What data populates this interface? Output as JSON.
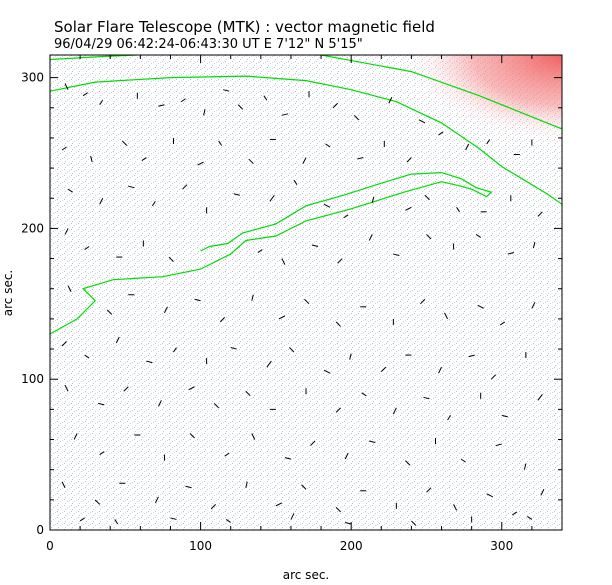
{
  "chart_data": {
    "type": "vector-magnetogram",
    "title": "Solar Flare Telescope (MTK) : vector magnetic field",
    "subtitle": "96/04/29  06:42:24-06:43:30 UT    E 7'12\"  N 5'15\"",
    "xlabel": "arc sec.",
    "ylabel": "arc sec.",
    "xlim": [
      0,
      340
    ],
    "ylim": [
      0,
      315
    ],
    "x_ticks": [
      0,
      100,
      200,
      300
    ],
    "y_ticks": [
      0,
      100,
      200,
      300
    ],
    "grid": false,
    "colors": {
      "frame": "#000000",
      "contour": "#00dd00",
      "vector": "#000000",
      "background_speckle": "#b4bede",
      "limb_region": "#f05a5a"
    },
    "limb_contour": [
      [
        0,
        291
      ],
      [
        30,
        297
      ],
      [
        80,
        300
      ],
      [
        130,
        301
      ],
      [
        170,
        298
      ],
      [
        200,
        292
      ],
      [
        230,
        284
      ],
      [
        260,
        270
      ],
      [
        285,
        253
      ],
      [
        300,
        241
      ],
      [
        315,
        232
      ],
      [
        330,
        223
      ],
      [
        340,
        216
      ]
    ],
    "upper_edge_contour": [
      [
        0,
        312
      ],
      [
        35,
        314
      ],
      [
        80,
        316
      ],
      [
        180,
        315
      ],
      [
        240,
        304
      ],
      [
        285,
        288
      ],
      [
        310,
        278
      ],
      [
        330,
        270
      ],
      [
        340,
        266
      ]
    ],
    "neutral_line_contour": [
      [
        0,
        130
      ],
      [
        18,
        140
      ],
      [
        30,
        152
      ],
      [
        22,
        160
      ],
      [
        42,
        166
      ],
      [
        75,
        168
      ],
      [
        100,
        173
      ],
      [
        120,
        183
      ],
      [
        130,
        192
      ],
      [
        150,
        195
      ],
      [
        170,
        205
      ],
      [
        200,
        213
      ],
      [
        235,
        224
      ],
      [
        260,
        231
      ],
      [
        273,
        228
      ],
      [
        280,
        226
      ],
      [
        290,
        221
      ],
      [
        293,
        224
      ],
      [
        283,
        227
      ],
      [
        273,
        233
      ],
      [
        260,
        237
      ],
      [
        240,
        236
      ],
      [
        220,
        230
      ],
      [
        195,
        222
      ],
      [
        170,
        215
      ],
      [
        150,
        203
      ],
      [
        128,
        197
      ],
      [
        118,
        190
      ],
      [
        106,
        188
      ],
      [
        100,
        185
      ]
    ],
    "vectors": [
      [
        12,
        292,
        -2,
        4
      ],
      [
        22,
        288,
        3,
        2
      ],
      [
        35,
        285,
        -2,
        -3
      ],
      [
        58,
        290,
        0,
        -4
      ],
      [
        72,
        281,
        4,
        1
      ],
      [
        90,
        286,
        -3,
        -2
      ],
      [
        102,
        275,
        1,
        4
      ],
      [
        115,
        292,
        4,
        -1
      ],
      [
        128,
        279,
        -3,
        3
      ],
      [
        142,
        288,
        2,
        -3
      ],
      [
        158,
        276,
        -4,
        -1
      ],
      [
        172,
        287,
        0,
        4
      ],
      [
        188,
        280,
        3,
        3
      ],
      [
        205,
        272,
        -3,
        3
      ],
      [
        225,
        283,
        2,
        4
      ],
      [
        245,
        272,
        4,
        -2
      ],
      [
        8,
        252,
        3,
        2
      ],
      [
        28,
        244,
        -1,
        4
      ],
      [
        48,
        258,
        3,
        -3
      ],
      [
        64,
        247,
        -3,
        -2
      ],
      [
        82,
        256,
        0,
        4
      ],
      [
        98,
        242,
        4,
        2
      ],
      [
        114,
        255,
        -2,
        3
      ],
      [
        132,
        246,
        3,
        -3
      ],
      [
        150,
        259,
        -4,
        0
      ],
      [
        168,
        243,
        2,
        4
      ],
      [
        186,
        254,
        -3,
        2
      ],
      [
        204,
        246,
        4,
        1
      ],
      [
        222,
        258,
        0,
        -4
      ],
      [
        240,
        247,
        -3,
        -3
      ],
      [
        258,
        262,
        3,
        2
      ],
      [
        276,
        252,
        2,
        4
      ],
      [
        292,
        259,
        -2,
        -3
      ],
      [
        308,
        249,
        4,
        0
      ],
      [
        320,
        255,
        0,
        4
      ],
      [
        15,
        224,
        -3,
        2
      ],
      [
        33,
        216,
        2,
        4
      ],
      [
        52,
        228,
        4,
        -1
      ],
      [
        70,
        218,
        -2,
        -3
      ],
      [
        88,
        226,
        3,
        3
      ],
      [
        104,
        214,
        0,
        -4
      ],
      [
        126,
        222,
        -4,
        1
      ],
      [
        146,
        218,
        3,
        4
      ],
      [
        164,
        229,
        -2,
        3
      ],
      [
        182,
        216,
        4,
        -2
      ],
      [
        198,
        209,
        -3,
        -2
      ],
      [
        214,
        217,
        1,
        4
      ],
      [
        236,
        212,
        4,
        2
      ],
      [
        252,
        219,
        -3,
        3
      ],
      [
        270,
        214,
        2,
        -3
      ],
      [
        290,
        211,
        -4,
        0
      ],
      [
        306,
        218,
        0,
        4
      ],
      [
        324,
        208,
        3,
        3
      ],
      [
        10,
        196,
        2,
        4
      ],
      [
        26,
        188,
        -3,
        -2
      ],
      [
        44,
        181,
        4,
        0
      ],
      [
        62,
        192,
        0,
        -4
      ],
      [
        82,
        178,
        -3,
        3
      ],
      [
        138,
        184,
        3,
        2
      ],
      [
        156,
        176,
        -2,
        4
      ],
      [
        174,
        189,
        4,
        -1
      ],
      [
        194,
        180,
        -3,
        -3
      ],
      [
        212,
        192,
        2,
        4
      ],
      [
        232,
        182,
        -4,
        1
      ],
      [
        250,
        196,
        3,
        -3
      ],
      [
        268,
        186,
        0,
        4
      ],
      [
        286,
        194,
        -3,
        2
      ],
      [
        304,
        183,
        4,
        1
      ],
      [
        322,
        191,
        -1,
        -4
      ],
      [
        14,
        158,
        -2,
        4
      ],
      [
        38,
        146,
        3,
        -3
      ],
      [
        56,
        156,
        -4,
        0
      ],
      [
        76,
        144,
        2,
        4
      ],
      [
        96,
        153,
        4,
        -1
      ],
      [
        116,
        141,
        -3,
        -3
      ],
      [
        134,
        152,
        1,
        4
      ],
      [
        152,
        140,
        4,
        2
      ],
      [
        172,
        150,
        -3,
        3
      ],
      [
        190,
        138,
        3,
        -3
      ],
      [
        210,
        148,
        -4,
        0
      ],
      [
        228,
        136,
        0,
        4
      ],
      [
        246,
        150,
        3,
        3
      ],
      [
        264,
        140,
        -2,
        4
      ],
      [
        284,
        149,
        4,
        -2
      ],
      [
        302,
        138,
        -3,
        -2
      ],
      [
        320,
        147,
        2,
        4
      ],
      [
        8,
        122,
        3,
        3
      ],
      [
        26,
        114,
        -3,
        2
      ],
      [
        44,
        124,
        2,
        4
      ],
      [
        64,
        112,
        4,
        -1
      ],
      [
        84,
        121,
        -2,
        -3
      ],
      [
        104,
        110,
        0,
        4
      ],
      [
        124,
        120,
        -4,
        1
      ],
      [
        144,
        108,
        3,
        4
      ],
      [
        162,
        118,
        -3,
        3
      ],
      [
        182,
        106,
        4,
        -2
      ],
      [
        200,
        117,
        -1,
        -4
      ],
      [
        220,
        105,
        3,
        3
      ],
      [
        240,
        116,
        -4,
        0
      ],
      [
        258,
        104,
        2,
        4
      ],
      [
        278,
        115,
        4,
        1
      ],
      [
        296,
        103,
        -3,
        -3
      ],
      [
        316,
        114,
        0,
        4
      ],
      [
        12,
        92,
        -2,
        4
      ],
      [
        32,
        84,
        4,
        -1
      ],
      [
        52,
        95,
        -3,
        -3
      ],
      [
        72,
        82,
        2,
        4
      ],
      [
        92,
        93,
        4,
        2
      ],
      [
        112,
        81,
        -3,
        3
      ],
      [
        130,
        92,
        3,
        -3
      ],
      [
        150,
        80,
        -4,
        0
      ],
      [
        170,
        90,
        0,
        4
      ],
      [
        190,
        78,
        3,
        3
      ],
      [
        210,
        89,
        -3,
        2
      ],
      [
        228,
        77,
        2,
        4
      ],
      [
        248,
        88,
        4,
        -1
      ],
      [
        266,
        76,
        -2,
        -3
      ],
      [
        286,
        87,
        0,
        4
      ],
      [
        304,
        75,
        -4,
        1
      ],
      [
        324,
        86,
        3,
        4
      ],
      [
        16,
        60,
        2,
        4
      ],
      [
        36,
        52,
        -3,
        -2
      ],
      [
        56,
        63,
        4,
        0
      ],
      [
        76,
        50,
        0,
        -4
      ],
      [
        96,
        61,
        -3,
        3
      ],
      [
        116,
        49,
        3,
        2
      ],
      [
        136,
        60,
        -2,
        4
      ],
      [
        156,
        48,
        4,
        -1
      ],
      [
        176,
        59,
        -3,
        -3
      ],
      [
        196,
        47,
        2,
        4
      ],
      [
        216,
        58,
        -4,
        1
      ],
      [
        236,
        46,
        3,
        -3
      ],
      [
        256,
        57,
        0,
        4
      ],
      [
        276,
        45,
        -3,
        2
      ],
      [
        296,
        56,
        4,
        1
      ],
      [
        316,
        44,
        -1,
        -4
      ],
      [
        10,
        28,
        -2,
        4
      ],
      [
        30,
        20,
        3,
        -3
      ],
      [
        50,
        31,
        -4,
        0
      ],
      [
        70,
        18,
        2,
        4
      ],
      [
        90,
        29,
        4,
        -1
      ],
      [
        110,
        17,
        -3,
        -3
      ],
      [
        130,
        28,
        1,
        4
      ],
      [
        150,
        16,
        4,
        2
      ],
      [
        170,
        27,
        -3,
        3
      ],
      [
        190,
        15,
        3,
        -3
      ],
      [
        210,
        26,
        -4,
        0
      ],
      [
        230,
        14,
        0,
        4
      ],
      [
        250,
        25,
        3,
        3
      ],
      [
        270,
        13,
        -2,
        4
      ],
      [
        290,
        24,
        4,
        -2
      ],
      [
        310,
        12,
        -3,
        -2
      ],
      [
        326,
        23,
        2,
        4
      ],
      [
        20,
        6,
        3,
        2
      ],
      [
        45,
        4,
        -2,
        3
      ],
      [
        80,
        8,
        4,
        -1
      ],
      [
        120,
        5,
        -3,
        2
      ],
      [
        160,
        7,
        2,
        4
      ],
      [
        200,
        4,
        -4,
        1
      ],
      [
        240,
        6,
        3,
        -3
      ],
      [
        280,
        5,
        0,
        4
      ],
      [
        320,
        7,
        -3,
        2
      ]
    ]
  }
}
